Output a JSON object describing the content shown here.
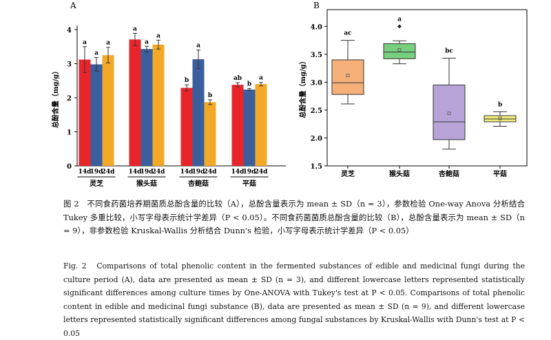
{
  "chart_data": [
    {
      "type": "bar",
      "panel_label": "A",
      "ylabel": "总酚含量（mg/g）",
      "ylim": [
        0,
        4
      ],
      "yticks": [
        "0",
        "1",
        "2",
        "3",
        "4"
      ],
      "categories": [
        "灵芝",
        "猴头菇",
        "杏鲍菇",
        "平菇"
      ],
      "subcategories": [
        "14d",
        "19d",
        "24d"
      ],
      "series": [
        {
          "name": "14d",
          "color": "#e8252b",
          "values": [
            3.12,
            3.71,
            2.29,
            2.38
          ],
          "errors": [
            0.38,
            0.18,
            0.09,
            0.06
          ],
          "letters": [
            "a",
            "a",
            "b",
            "ab"
          ]
        },
        {
          "name": "19d",
          "color": "#3b5f9c",
          "values": [
            2.98,
            3.43,
            3.13,
            2.24
          ],
          "errors": [
            0.2,
            0.08,
            0.27,
            0.03
          ],
          "letters": [
            "a",
            "a",
            "a",
            "b"
          ]
        },
        {
          "name": "24d",
          "color": "#f2a928",
          "values": [
            3.25,
            3.56,
            1.87,
            2.4
          ],
          "errors": [
            0.23,
            0.13,
            0.07,
            0.05
          ],
          "letters": [
            "a",
            "a",
            "b",
            "a"
          ]
        }
      ]
    },
    {
      "type": "box",
      "panel_label": "B",
      "ylabel": "总酚含量（mg/g）",
      "ylim": [
        1.5,
        4.3
      ],
      "yticks": [
        "1.5",
        "2.0",
        "2.5",
        "3.0",
        "3.5",
        "4.0"
      ],
      "categories": [
        "灵芝",
        "猴头菇",
        "杏鲍菇",
        "平菇"
      ],
      "boxes": [
        {
          "min": 2.61,
          "q1": 2.78,
          "median": 2.99,
          "q3": 3.4,
          "max": 3.75,
          "mean": 3.12,
          "outliers": [],
          "letter": "ac",
          "color": "#f5b07a"
        },
        {
          "min": 3.33,
          "q1": 3.42,
          "median": 3.54,
          "q3": 3.69,
          "max": 3.74,
          "mean": 3.58,
          "outliers": [
            4.0
          ],
          "letter": "a",
          "color": "#78cf7e"
        },
        {
          "min": 1.8,
          "q1": 1.97,
          "median": 2.29,
          "q3": 2.95,
          "max": 3.43,
          "mean": 2.44,
          "outliers": [],
          "letter": "bc",
          "color": "#b7a3d7"
        },
        {
          "min": 2.21,
          "q1": 2.29,
          "median": 2.34,
          "q3": 2.4,
          "max": 2.47,
          "mean": 2.35,
          "outliers": [],
          "letter": "b",
          "color": "#f2ee7c"
        }
      ]
    }
  ],
  "caption": {
    "cn": "图 2　不同食药菌培养期菌质总酚含量的比较（A），总酚含量表示为 mean ± SD（n = 3），参数检验 One-way Anova 分析结合 Tukey 多重比较，小写字母表示统计学差异（P < 0.05）。不同食药菌菌质总酚含量的比较（B），总酚含量表示为 mean ± SD（n = 9），非参数检验 Kruskal-Wallis 分析结合 Dunn's 检验，小写字母表示统计学差异（P < 0.05）",
    "en": "Fig. 2　Comparisons of total phenolic content in the fermented substances of edible and medicinal fungi during the culture period (A), data are presented as mean ± SD (n = 3), and different lowercase letters represented statistically significant differences among culture times by One-ANOVA with Tukey's test at P < 0.05. Comparisons of total phenolic content in edible and medicinal fungi substance (B), data are presented as mean ± SD (n = 9), and different lowercase letters represented statistically significant differences among fungal substances by Kruskal-Wallis with Dunn's test at P < 0.05"
  }
}
